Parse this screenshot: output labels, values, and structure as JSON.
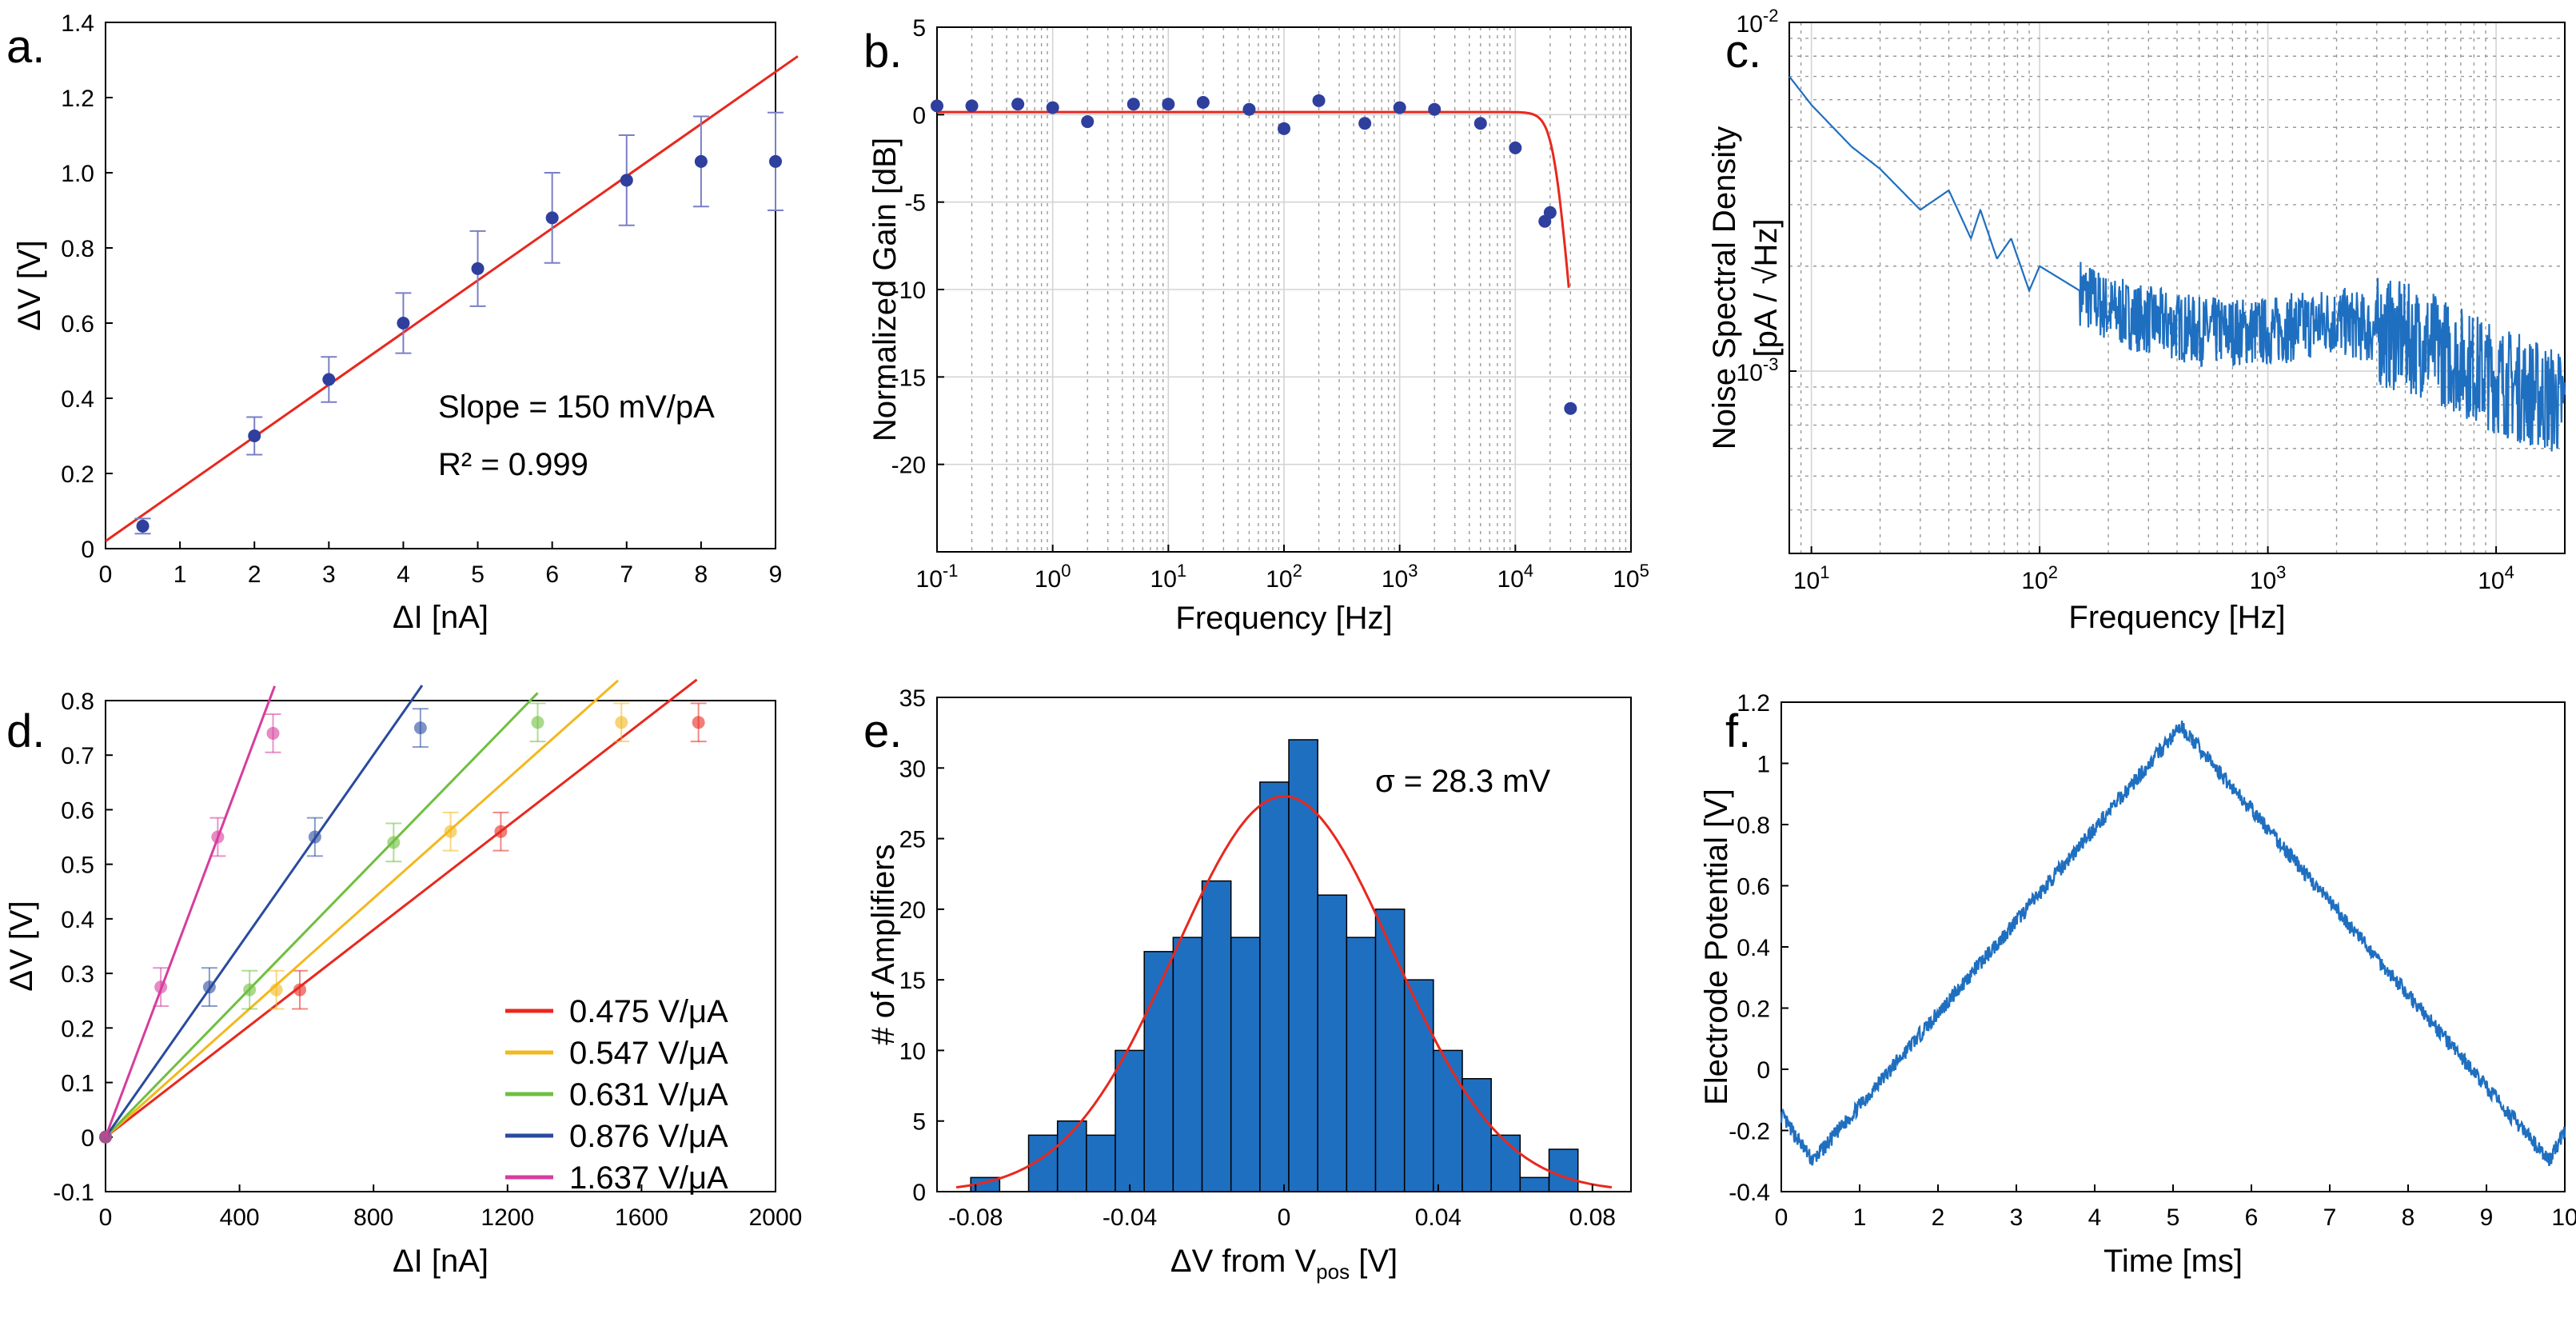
{
  "chart_data": [
    {
      "id": "a",
      "type": "scatter",
      "panel_label": "a.",
      "xlabel": "ΔI [nA]",
      "ylabel": "ΔV [V]",
      "xlim": [
        0,
        9
      ],
      "ylim": [
        0,
        1.4
      ],
      "xticks": [
        "0",
        "1",
        "2",
        "3",
        "4",
        "5",
        "6",
        "7",
        "8",
        "9"
      ],
      "yticks": [
        "0",
        "0.2",
        "0.4",
        "0.6",
        "0.8",
        "1.0",
        "1.2",
        "1.4"
      ],
      "points": [
        {
          "x": 0.5,
          "y": 0.06,
          "err": 0.02
        },
        {
          "x": 2,
          "y": 0.3,
          "err": 0.05
        },
        {
          "x": 3,
          "y": 0.45,
          "err": 0.06
        },
        {
          "x": 4,
          "y": 0.6,
          "err": 0.08
        },
        {
          "x": 5,
          "y": 0.745,
          "err": 0.1
        },
        {
          "x": 6,
          "y": 0.88,
          "err": 0.12
        },
        {
          "x": 7,
          "y": 0.98,
          "err": 0.12
        },
        {
          "x": 8,
          "y": 1.03,
          "err": 0.12
        },
        {
          "x": 9,
          "y": 1.03,
          "err": 0.13
        }
      ],
      "fit": {
        "x": [
          0,
          9.3
        ],
        "y": [
          0.02,
          1.31
        ]
      },
      "annotations": [
        "Slope = 150 mV/pA",
        "R² = 0.999"
      ],
      "colors": {
        "points": "#2e3f9e",
        "errorbars": "#7a7fc4",
        "fit": "#e8281e"
      }
    },
    {
      "id": "b",
      "type": "scatter",
      "panel_label": "b.",
      "xlabel": "Frequency [Hz]",
      "ylabel": "Normalized Gain [dB]",
      "xscale": "log",
      "xlim": [
        0.1,
        100000
      ],
      "ylim": [
        -25,
        5
      ],
      "xticks_exp": [
        "-1",
        "0",
        "1",
        "2",
        "3",
        "4",
        "5"
      ],
      "yticks": [
        "5",
        "0",
        "-5",
        "-10",
        "-15",
        "-20"
      ],
      "points": [
        {
          "x": 0.1,
          "y": 0.5
        },
        {
          "x": 0.2,
          "y": 0.5
        },
        {
          "x": 0.5,
          "y": 0.6
        },
        {
          "x": 1,
          "y": 0.4
        },
        {
          "x": 2,
          "y": -0.4
        },
        {
          "x": 5,
          "y": 0.6
        },
        {
          "x": 10,
          "y": 0.6
        },
        {
          "x": 20,
          "y": 0.7
        },
        {
          "x": 50,
          "y": 0.3
        },
        {
          "x": 100,
          "y": -0.8
        },
        {
          "x": 200,
          "y": 0.8
        },
        {
          "x": 500,
          "y": -0.5
        },
        {
          "x": 1000,
          "y": 0.4
        },
        {
          "x": 2000,
          "y": 0.3
        },
        {
          "x": 5000,
          "y": -0.5
        },
        {
          "x": 10000,
          "y": -1.9
        },
        {
          "x": 18000,
          "y": -6.1
        },
        {
          "x": 20000,
          "y": -5.6
        },
        {
          "x": 30000,
          "y": -16.8
        }
      ],
      "fit_cutoff_hz": 22000,
      "colors": {
        "points": "#2e3f9e",
        "fit": "#e8281e"
      }
    },
    {
      "id": "c",
      "type": "line",
      "panel_label": "c.",
      "xlabel": "Frequency [Hz]",
      "ylabel": [
        "Noise Spectral Density",
        "[pA / √Hz]"
      ],
      "xscale": "log",
      "yscale": "log",
      "xlim": [
        8,
        20000
      ],
      "ylim": [
        0.0003,
        0.01
      ],
      "xticks_exp": [
        "1",
        "2",
        "3",
        "4"
      ],
      "yticks_exp": [
        "-2",
        "-3"
      ],
      "series": [
        {
          "name": "noise",
          "points": [
            [
              8,
              0.007
            ],
            [
              10,
              0.0058
            ],
            [
              15,
              0.0044
            ],
            [
              20,
              0.0038
            ],
            [
              30,
              0.0029
            ],
            [
              40,
              0.0033
            ],
            [
              50,
              0.0024
            ],
            [
              55,
              0.0029
            ],
            [
              65,
              0.0021
            ],
            [
              75,
              0.0024
            ],
            [
              90,
              0.0017
            ],
            [
              100,
              0.002
            ],
            [
              150,
              0.0017
            ],
            [
              200,
              0.0015
            ],
            [
              300,
              0.0014
            ],
            [
              500,
              0.0013
            ],
            [
              1000,
              0.0013
            ],
            [
              2000,
              0.0014
            ],
            [
              3000,
              0.0013
            ],
            [
              5000,
              0.0012
            ],
            [
              10000,
              0.00095
            ],
            [
              20000,
              0.0008
            ]
          ]
        }
      ],
      "colors": {
        "line": "#1f6fc0"
      }
    },
    {
      "id": "d",
      "type": "scatter",
      "panel_label": "d.",
      "xlabel": "ΔI [nA]",
      "ylabel": "ΔV [V]",
      "xlim": [
        0,
        2000
      ],
      "ylim": [
        -0.1,
        0.8
      ],
      "xticks": [
        "0",
        "400",
        "800",
        "1200",
        "1600",
        "2000"
      ],
      "yticks": [
        "-0.1",
        "0",
        "0.1",
        "0.2",
        "0.3",
        "0.4",
        "0.5",
        "0.6",
        "0.7",
        "0.8"
      ],
      "series": [
        {
          "name": "0.475 V/μA",
          "color": "#e8281e",
          "slope": 0.475,
          "line_x_end": 1765,
          "points": [
            {
              "x": 0,
              "y": 0
            },
            {
              "x": 580,
              "y": 0.27
            },
            {
              "x": 1180,
              "y": 0.56
            },
            {
              "x": 1770,
              "y": 0.76
            }
          ]
        },
        {
          "name": "0.547 V/μA",
          "color": "#f2b81c",
          "slope": 0.547,
          "line_x_end": 1530,
          "points": [
            {
              "x": 0,
              "y": 0
            },
            {
              "x": 510,
              "y": 0.27
            },
            {
              "x": 1030,
              "y": 0.56
            },
            {
              "x": 1540,
              "y": 0.76
            }
          ]
        },
        {
          "name": "0.631 V/μA",
          "color": "#6fbf3f",
          "slope": 0.631,
          "line_x_end": 1290,
          "points": [
            {
              "x": 0,
              "y": 0
            },
            {
              "x": 430,
              "y": 0.27
            },
            {
              "x": 860,
              "y": 0.54
            },
            {
              "x": 1290,
              "y": 0.76
            }
          ]
        },
        {
          "name": "0.876 V/μA",
          "color": "#2a4a9e",
          "slope": 0.876,
          "line_x_end": 945,
          "points": [
            {
              "x": 0,
              "y": 0
            },
            {
              "x": 310,
              "y": 0.275
            },
            {
              "x": 625,
              "y": 0.55
            },
            {
              "x": 940,
              "y": 0.75
            }
          ]
        },
        {
          "name": "1.637 V/μA",
          "color": "#d63d9c",
          "slope": 1.637,
          "line_x_end": 505,
          "points": [
            {
              "x": 0,
              "y": 0
            },
            {
              "x": 165,
              "y": 0.275
            },
            {
              "x": 335,
              "y": 0.55
            },
            {
              "x": 500,
              "y": 0.74
            }
          ]
        }
      ],
      "legend_position": "lower-right"
    },
    {
      "id": "e",
      "type": "bar",
      "panel_label": "e.",
      "xlabel_main": "ΔV from V",
      "xlabel_sub": "pos",
      "xlabel_unit": " [V]",
      "ylabel": "# of Amplifiers",
      "xlim": [
        -0.09,
        0.09
      ],
      "ylim": [
        0,
        35
      ],
      "xticks": [
        "-0.08",
        "-0.04",
        "0",
        "0.04",
        "0.08"
      ],
      "yticks": [
        "0",
        "5",
        "10",
        "15",
        "20",
        "25",
        "30",
        "35"
      ],
      "bin_width": 0.0075,
      "bins": [
        {
          "center": -0.0775,
          "count": 1
        },
        {
          "center": -0.07,
          "count": 0
        },
        {
          "center": -0.0625,
          "count": 4
        },
        {
          "center": -0.055,
          "count": 5
        },
        {
          "center": -0.0475,
          "count": 4
        },
        {
          "center": -0.04,
          "count": 10
        },
        {
          "center": -0.0325,
          "count": 17
        },
        {
          "center": -0.025,
          "count": 18
        },
        {
          "center": -0.0175,
          "count": 22
        },
        {
          "center": -0.01,
          "count": 18
        },
        {
          "center": -0.0025,
          "count": 29
        },
        {
          "center": 0.005,
          "count": 32
        },
        {
          "center": 0.0125,
          "count": 21
        },
        {
          "center": 0.02,
          "count": 18
        },
        {
          "center": 0.0275,
          "count": 20
        },
        {
          "center": 0.035,
          "count": 15
        },
        {
          "center": 0.0425,
          "count": 10
        },
        {
          "center": 0.05,
          "count": 8
        },
        {
          "center": 0.0575,
          "count": 4
        },
        {
          "center": 0.065,
          "count": 1
        },
        {
          "center": 0.0725,
          "count": 3
        }
      ],
      "gaussian": {
        "mean": 0,
        "sigma": 0.0283,
        "peak": 28
      },
      "annotation": "σ = 28.3 mV",
      "colors": {
        "bars": "#1f6fc0",
        "gaussian": "#e8281e"
      }
    },
    {
      "id": "f",
      "type": "line",
      "panel_label": "f.",
      "xlabel": "Time [ms]",
      "ylabel": "Electrode Potential [V]",
      "xlim": [
        0,
        10
      ],
      "ylim": [
        -0.4,
        1.2
      ],
      "xticks": [
        "0",
        "1",
        "2",
        "3",
        "4",
        "5",
        "6",
        "7",
        "8",
        "9",
        "10"
      ],
      "yticks": [
        "-0.4",
        "-0.2",
        "0",
        "0.2",
        "0.4",
        "0.6",
        "0.8",
        "1",
        "1.2"
      ],
      "series": [
        {
          "name": "triangle",
          "points": [
            [
              0,
              -0.15
            ],
            [
              0.4,
              -0.3
            ],
            [
              5.1,
              1.12
            ],
            [
              9.8,
              -0.3
            ],
            [
              10,
              -0.2
            ]
          ]
        }
      ],
      "colors": {
        "line": "#1f6fc0"
      }
    }
  ]
}
